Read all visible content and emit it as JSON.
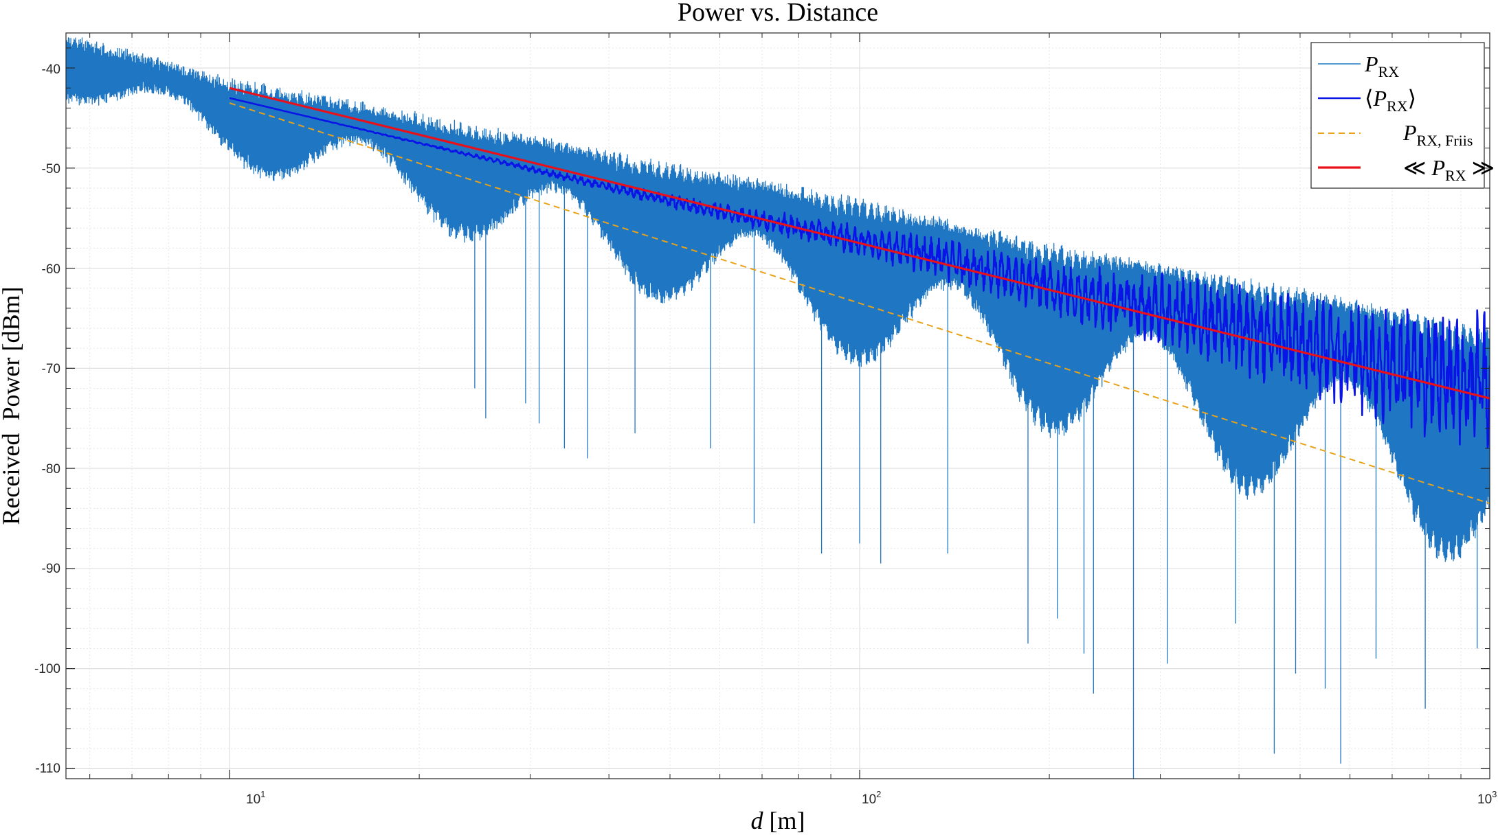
{
  "chart_data": {
    "type": "line",
    "title": "Power vs. Distance",
    "xlabel_var": "d",
    "xlabel_unit": "[m]",
    "ylabel": "Received  Power [dBm]",
    "xscale": "log",
    "xlim": [
      5.5,
      1000
    ],
    "ylim": [
      -111,
      -36.5
    ],
    "grid": true,
    "minor_grid": true,
    "legend_position": "top-right",
    "x_ticks": [
      {
        "value": 10,
        "base": "10",
        "exp": "1"
      },
      {
        "value": 100,
        "base": "10",
        "exp": "2"
      },
      {
        "value": 1000,
        "base": "10",
        "exp": "3"
      }
    ],
    "y_ticks": [
      {
        "value": -40,
        "label": "-40"
      },
      {
        "value": -50,
        "label": "-50"
      },
      {
        "value": -60,
        "label": "-60"
      },
      {
        "value": -70,
        "label": "-70"
      },
      {
        "value": -80,
        "label": "-80"
      },
      {
        "value": -90,
        "label": "-90"
      },
      {
        "value": -100,
        "label": "-100"
      },
      {
        "value": -110,
        "label": "-110"
      }
    ],
    "legend": [
      {
        "main": "P",
        "sub": "RX",
        "prefix": "",
        "suffix": "",
        "style": "thin-blue"
      },
      {
        "main": "P",
        "sub": "RX",
        "prefix": "⟨",
        "suffix": "⟩",
        "style": "blue"
      },
      {
        "main": "P",
        "sub": "RX, Friis",
        "prefix": "",
        "suffix": "",
        "style": "dashed-orange"
      },
      {
        "main": "P",
        "sub": "RX",
        "prefix": "≪ ",
        "suffix": " ≫",
        "style": "red"
      }
    ],
    "series": [
      {
        "name": "P_RX",
        "kind": "two-ray-instantaneous",
        "color": "#1f77c4",
        "x_range": [
          5.5,
          1000
        ],
        "envelope_upper": [
          [
            5.5,
            -37.0
          ],
          [
            10,
            -41.5
          ],
          [
            20,
            -45.0
          ],
          [
            50,
            -50.0
          ],
          [
            100,
            -53.5
          ],
          [
            200,
            -58.0
          ],
          [
            500,
            -62.5
          ],
          [
            1000,
            -66.5
          ]
        ],
        "deep_nulls": [
          [
            24.5,
            -72.0
          ],
          [
            25.5,
            -75.0
          ],
          [
            29.5,
            -73.5
          ],
          [
            31,
            -75.5
          ],
          [
            34,
            -78.0
          ],
          [
            37,
            -79.0
          ],
          [
            44,
            -76.5
          ],
          [
            58,
            -78.0
          ],
          [
            68,
            -85.5
          ],
          [
            87,
            -88.5
          ],
          [
            100,
            -87.5
          ],
          [
            108,
            -89.5
          ],
          [
            138,
            -88.5
          ],
          [
            185,
            -97.5
          ],
          [
            206,
            -95.0
          ],
          [
            227,
            -98.5
          ],
          [
            235,
            -102.5
          ],
          [
            272,
            -111.0
          ],
          [
            308,
            -99.5
          ],
          [
            395,
            -95.5
          ],
          [
            455,
            -108.5
          ],
          [
            492,
            -100.5
          ],
          [
            548,
            -102.0
          ],
          [
            580,
            -109.5
          ],
          [
            660,
            -99.0
          ],
          [
            790,
            -104.0
          ],
          [
            955,
            -98.0
          ]
        ]
      },
      {
        "name": "⟨P_RX⟩",
        "kind": "local-average",
        "color": "#0a14e6",
        "x_range": [
          10,
          1000
        ],
        "points": [
          [
            10,
            -43.0
          ],
          [
            20,
            -47.5
          ],
          [
            50,
            -53.3
          ],
          [
            70,
            -55.2
          ],
          [
            100,
            -57.2
          ],
          [
            140,
            -59.3
          ],
          [
            200,
            -62.0
          ],
          [
            300,
            -64.2
          ],
          [
            500,
            -67.5
          ],
          [
            800,
            -70.5
          ],
          [
            1000,
            -71.0
          ]
        ]
      },
      {
        "name": "P_RX, Friis",
        "kind": "free-space",
        "color": "#e8a21a",
        "x_range": [
          10,
          1000
        ],
        "points": [
          [
            10,
            -43.5
          ],
          [
            1000,
            -83.5
          ]
        ]
      },
      {
        "name": "≪P_RX≫",
        "kind": "path-loss-fit",
        "color": "#e8101a",
        "x_range": [
          10,
          1000
        ],
        "points": [
          [
            10,
            -42.0
          ],
          [
            1000,
            -73.0
          ]
        ]
      }
    ]
  }
}
